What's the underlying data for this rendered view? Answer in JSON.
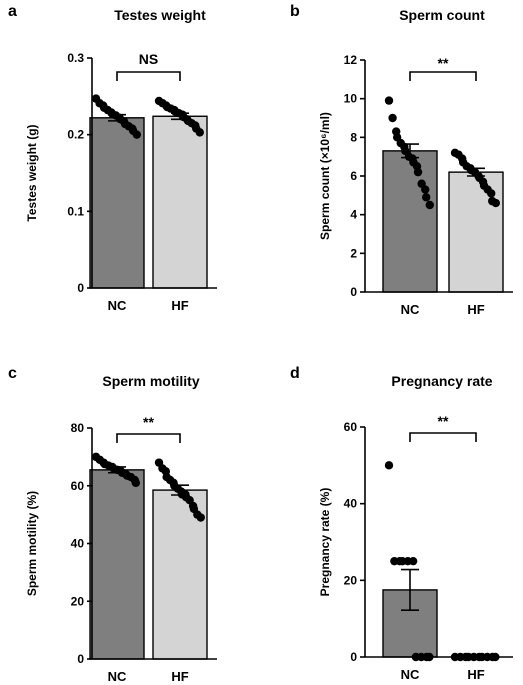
{
  "chart_data": [
    {
      "type": "bar",
      "panel": "a",
      "title": "Testes weight",
      "ylabel": "Testes weight (g)",
      "xlabel": "",
      "categories": [
        "NC",
        "HF"
      ],
      "ylim": [
        0,
        0.3
      ],
      "yticks": [
        "0",
        "0.1",
        "0.2",
        "0.3"
      ],
      "values": [
        0.222,
        0.224
      ],
      "errors": [
        0.004,
        0.004
      ],
      "bar_colors": [
        "#7f7f7f",
        "#d4d4d4"
      ],
      "points": [
        [
          0.247,
          0.241,
          0.238,
          0.235,
          0.232,
          0.229,
          0.227,
          0.225,
          0.222,
          0.22,
          0.217,
          0.214,
          0.211,
          0.208,
          0.205,
          0.2
        ],
        [
          0.244,
          0.241,
          0.238,
          0.236,
          0.234,
          0.232,
          0.23,
          0.228,
          0.226,
          0.223,
          0.22,
          0.218,
          0.215,
          0.212,
          0.208,
          0.203
        ]
      ],
      "significance": "NS"
    },
    {
      "type": "bar",
      "panel": "b",
      "title": "Sperm count",
      "ylabel": "Sperm count (×10⁶/ml)",
      "xlabel": "",
      "categories": [
        "NC",
        "HF"
      ],
      "ylim": [
        0,
        12
      ],
      "yticks": [
        "0",
        "2",
        "4",
        "6",
        "8",
        "10",
        "12"
      ],
      "values": [
        7.3,
        6.2
      ],
      "errors": [
        0.35,
        0.2
      ],
      "bar_colors": [
        "#7f7f7f",
        "#d4d4d4"
      ],
      "points": [
        [
          9.9,
          9.0,
          8.3,
          8.0,
          7.7,
          7.5,
          7.3,
          7.0,
          6.9,
          6.7,
          6.5,
          6.2,
          5.6,
          5.3,
          4.9,
          4.5
        ],
        [
          7.2,
          7.1,
          6.9,
          6.7,
          6.5,
          6.4,
          6.3,
          6.2,
          6.0,
          5.9,
          5.7,
          5.5,
          5.3,
          5.1,
          4.7,
          4.6
        ]
      ],
      "significance": "**"
    },
    {
      "type": "bar",
      "panel": "c",
      "title": "Sperm motility",
      "ylabel": "Sperm motility (%)",
      "xlabel": "",
      "categories": [
        "NC",
        "HF"
      ],
      "ylim": [
        0,
        80
      ],
      "yticks": [
        "0",
        "20",
        "40",
        "60",
        "80"
      ],
      "values": [
        65.5,
        58.5
      ],
      "errors": [
        1.0,
        1.7
      ],
      "bar_colors": [
        "#7f7f7f",
        "#d4d4d4"
      ],
      "points": [
        [
          70,
          69,
          68,
          67.5,
          67,
          66.5,
          66,
          65.5,
          65,
          64.5,
          64,
          63.5,
          63,
          62,
          61
        ],
        [
          68,
          66,
          65,
          63,
          62,
          61,
          60,
          59,
          58,
          57,
          57,
          56,
          55,
          53,
          52,
          50,
          49
        ]
      ],
      "significance": "**"
    },
    {
      "type": "bar",
      "panel": "d",
      "title": "Pregnancy rate",
      "ylabel": "Pregnancy rate (%)",
      "xlabel": "",
      "categories": [
        "NC",
        "HF"
      ],
      "ylim": [
        0,
        60
      ],
      "yticks": [
        "0",
        "20",
        "40",
        "60"
      ],
      "values": [
        17.5,
        0
      ],
      "errors": [
        5.3,
        0
      ],
      "bar_colors": [
        "#7f7f7f",
        "#d4d4d4"
      ],
      "points": [
        [
          50,
          25,
          25,
          25,
          25,
          25,
          0,
          0,
          0,
          0
        ],
        [
          0,
          0,
          0,
          0,
          0,
          0,
          0,
          0,
          0,
          0
        ]
      ],
      "significance": "**"
    }
  ]
}
